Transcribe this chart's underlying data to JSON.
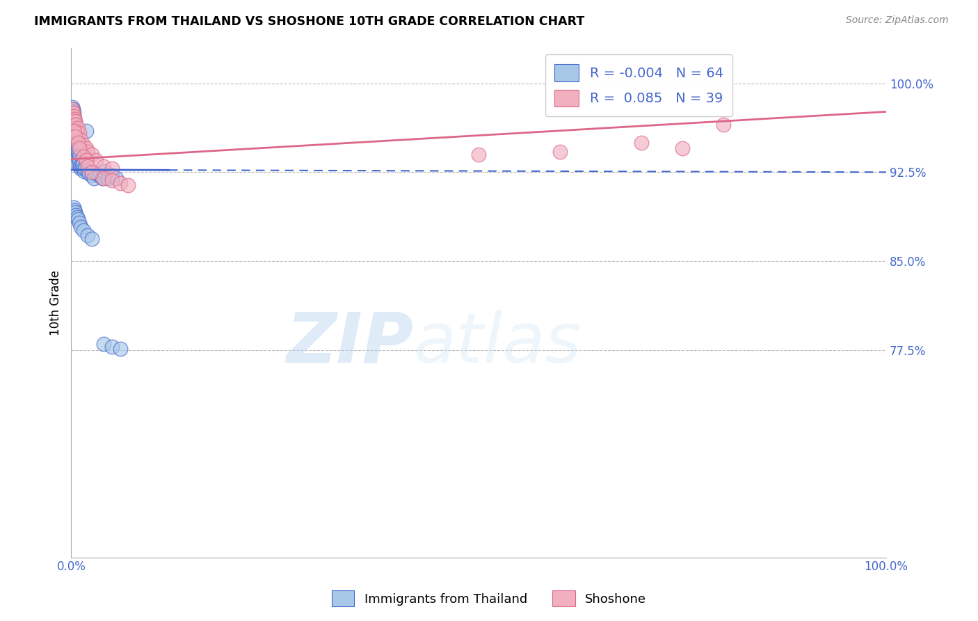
{
  "title": "IMMIGRANTS FROM THAILAND VS SHOSHONE 10TH GRADE CORRELATION CHART",
  "source": "Source: ZipAtlas.com",
  "ylabel": "10th Grade",
  "legend_label1": "Immigrants from Thailand",
  "legend_label2": "Shoshone",
  "legend_R1": "-0.004",
  "legend_N1": "64",
  "legend_R2": "0.085",
  "legend_N2": "39",
  "blue_color": "#a8c8e8",
  "pink_color": "#f0b0c0",
  "blue_line_color": "#4466cc",
  "pink_line_color": "#dd6688",
  "watermark_zip": "ZIP",
  "watermark_atlas": "atlas",
  "xlim": [
    0.0,
    1.0
  ],
  "ylim": [
    0.6,
    1.03
  ],
  "yticks_right": [
    0.775,
    0.85,
    0.925,
    1.0
  ],
  "ytick_right_labels": [
    "77.5%",
    "85.0%",
    "92.5%",
    "100.0%"
  ],
  "grid_lines": [
    0.775,
    0.85,
    0.925,
    1.0
  ],
  "blue_x": [
    0.001,
    0.001,
    0.002,
    0.002,
    0.002,
    0.003,
    0.003,
    0.003,
    0.003,
    0.004,
    0.004,
    0.004,
    0.004,
    0.004,
    0.005,
    0.005,
    0.005,
    0.005,
    0.006,
    0.006,
    0.006,
    0.007,
    0.007,
    0.007,
    0.008,
    0.008,
    0.009,
    0.009,
    0.01,
    0.01,
    0.01,
    0.011,
    0.012,
    0.013,
    0.014,
    0.015,
    0.016,
    0.017,
    0.018,
    0.02,
    0.022,
    0.025,
    0.028,
    0.03,
    0.035,
    0.038,
    0.04,
    0.045,
    0.05,
    0.055,
    0.003,
    0.004,
    0.005,
    0.006,
    0.007,
    0.008,
    0.01,
    0.012,
    0.015,
    0.02,
    0.025,
    0.04,
    0.05,
    0.06
  ],
  "blue_y": [
    0.98,
    0.975,
    0.978,
    0.976,
    0.97,
    0.975,
    0.972,
    0.968,
    0.965,
    0.97,
    0.967,
    0.963,
    0.96,
    0.958,
    0.965,
    0.96,
    0.956,
    0.952,
    0.958,
    0.954,
    0.95,
    0.952,
    0.948,
    0.944,
    0.946,
    0.942,
    0.94,
    0.936,
    0.938,
    0.934,
    0.93,
    0.93,
    0.928,
    0.93,
    0.932,
    0.928,
    0.926,
    0.928,
    0.96,
    0.926,
    0.924,
    0.922,
    0.92,
    0.924,
    0.922,
    0.92,
    0.926,
    0.92,
    0.922,
    0.92,
    0.895,
    0.893,
    0.891,
    0.889,
    0.887,
    0.885,
    0.882,
    0.879,
    0.876,
    0.872,
    0.869,
    0.78,
    0.778,
    0.776
  ],
  "pink_x": [
    0.001,
    0.002,
    0.002,
    0.003,
    0.003,
    0.004,
    0.004,
    0.005,
    0.005,
    0.006,
    0.006,
    0.007,
    0.008,
    0.01,
    0.012,
    0.015,
    0.018,
    0.02,
    0.025,
    0.03,
    0.04,
    0.05,
    0.003,
    0.005,
    0.008,
    0.01,
    0.015,
    0.018,
    0.02,
    0.025,
    0.04,
    0.05,
    0.06,
    0.07,
    0.5,
    0.6,
    0.7,
    0.75,
    0.8
  ],
  "pink_y": [
    0.978,
    0.975,
    0.97,
    0.972,
    0.968,
    0.97,
    0.965,
    0.968,
    0.962,
    0.965,
    0.96,
    0.958,
    0.962,
    0.958,
    0.952,
    0.948,
    0.945,
    0.942,
    0.94,
    0.935,
    0.93,
    0.928,
    0.96,
    0.955,
    0.95,
    0.945,
    0.938,
    0.935,
    0.93,
    0.925,
    0.92,
    0.918,
    0.916,
    0.914,
    0.94,
    0.942,
    0.95,
    0.945,
    0.965
  ],
  "blue_line_x0": 0.0,
  "blue_line_x_solid_end": 0.12,
  "blue_line_x1": 1.0,
  "blue_line_y_start": 0.927,
  "blue_line_y_end": 0.925,
  "pink_line_x0": 0.0,
  "pink_line_x1": 1.0,
  "pink_line_y_start": 0.936,
  "pink_line_y_end": 0.976
}
